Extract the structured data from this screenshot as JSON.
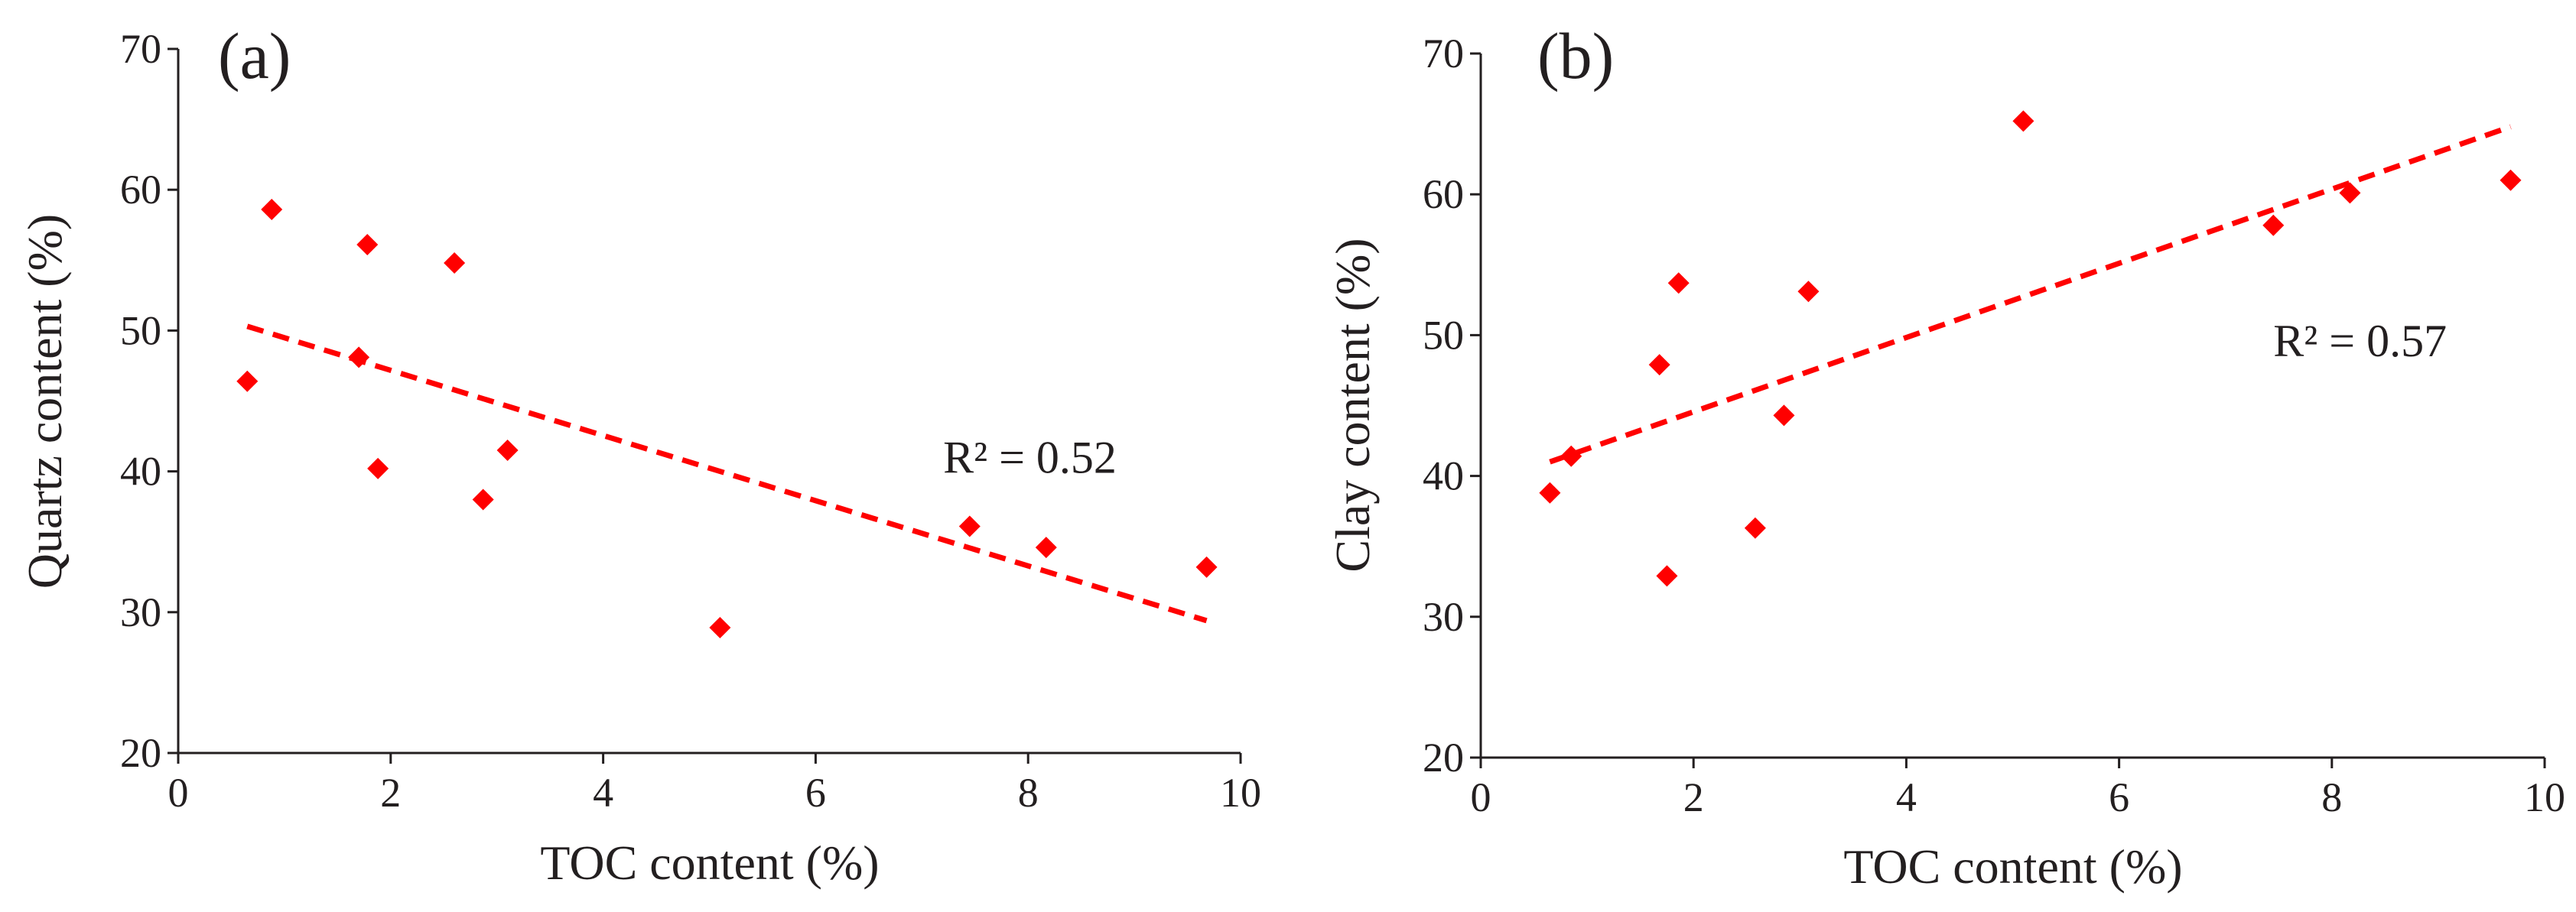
{
  "chart_data": [
    {
      "type": "scatter",
      "panel_label": "(a)",
      "xlabel": "TOC content (%)",
      "ylabel": "Quartz content (%)",
      "xlim": [
        0,
        10
      ],
      "ylim": [
        20,
        70
      ],
      "xticks": [
        0,
        2,
        4,
        6,
        8,
        10
      ],
      "yticks": [
        20,
        30,
        40,
        50,
        60,
        70
      ],
      "grid": false,
      "points": [
        {
          "x": 0.65,
          "y": 46.4
        },
        {
          "x": 0.88,
          "y": 58.6
        },
        {
          "x": 1.7,
          "y": 48.1
        },
        {
          "x": 1.78,
          "y": 56.1
        },
        {
          "x": 1.88,
          "y": 40.2
        },
        {
          "x": 2.6,
          "y": 54.8
        },
        {
          "x": 2.87,
          "y": 38.0
        },
        {
          "x": 3.1,
          "y": 41.5
        },
        {
          "x": 5.1,
          "y": 28.9
        },
        {
          "x": 7.45,
          "y": 36.1
        },
        {
          "x": 8.17,
          "y": 34.6
        },
        {
          "x": 9.68,
          "y": 33.2
        }
      ],
      "trendline": {
        "x0": 0.65,
        "y0": 50.3,
        "x1": 9.68,
        "y1": 29.4
      },
      "r2_text": "R² = 0.52",
      "r2_anchor": {
        "x": 7.2,
        "y": 39.9
      },
      "color": "#ff0000"
    },
    {
      "type": "scatter",
      "panel_label": "(b)",
      "xlabel": "TOC content (%)",
      "ylabel": "Clay content (%)",
      "xlim": [
        0,
        10
      ],
      "ylim": [
        20,
        70
      ],
      "xticks": [
        0,
        2,
        4,
        6,
        8,
        10
      ],
      "yticks": [
        20,
        30,
        40,
        50,
        60,
        70
      ],
      "grid": false,
      "points": [
        {
          "x": 0.65,
          "y": 38.8
        },
        {
          "x": 0.85,
          "y": 41.4
        },
        {
          "x": 1.68,
          "y": 47.9
        },
        {
          "x": 1.75,
          "y": 32.9
        },
        {
          "x": 1.86,
          "y": 53.7
        },
        {
          "x": 2.58,
          "y": 36.3
        },
        {
          "x": 2.85,
          "y": 44.3
        },
        {
          "x": 3.08,
          "y": 53.1
        },
        {
          "x": 5.1,
          "y": 65.2
        },
        {
          "x": 7.45,
          "y": 57.8
        },
        {
          "x": 8.17,
          "y": 60.1
        },
        {
          "x": 9.68,
          "y": 61.0
        }
      ],
      "trendline": {
        "x0": 0.65,
        "y0": 41.0,
        "x1": 9.68,
        "y1": 64.8
      },
      "r2_text": "R² = 0.57",
      "r2_anchor": {
        "x": 7.45,
        "y": 48.5
      },
      "color": "#ff0000"
    }
  ]
}
